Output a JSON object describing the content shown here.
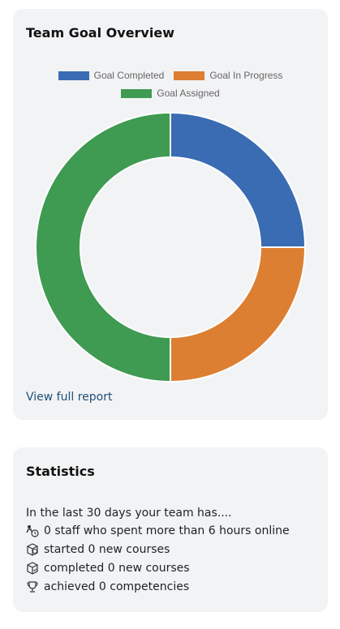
{
  "goal_overview": {
    "title": "Team Goal Overview",
    "legend": [
      {
        "label": "Goal Completed",
        "color": "#3a6cb3"
      },
      {
        "label": "Goal In Progress",
        "color": "#dc7f32"
      },
      {
        "label": "Goal Assigned",
        "color": "#3f9a52"
      }
    ],
    "view_report_label": "View full report"
  },
  "chart_data": {
    "type": "pie",
    "categories": [
      "Goal Completed",
      "Goal In Progress",
      "Goal Assigned"
    ],
    "values": [
      1,
      1,
      2
    ],
    "colors": [
      "#3a6cb3",
      "#dc7f32",
      "#3f9a52"
    ],
    "title": "",
    "legend_position": "top"
  },
  "statistics": {
    "title": "Statistics",
    "intro": "In the last 30 days your team has....",
    "lines": [
      {
        "icon": "staff-clock-icon",
        "text": "0 staff who spent more than 6 hours online"
      },
      {
        "icon": "course-started-icon",
        "text": "started 0 new courses"
      },
      {
        "icon": "course-completed-icon",
        "text": "completed 0 new courses"
      },
      {
        "icon": "trophy-icon",
        "text": "achieved 0 competencies"
      }
    ]
  }
}
